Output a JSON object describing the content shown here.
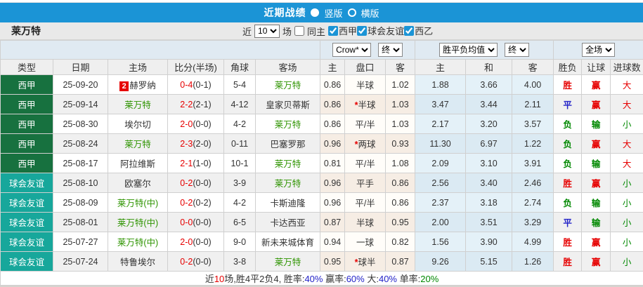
{
  "title": {
    "label": "近期战绩",
    "radio_vertical": "竖版",
    "radio_horizontal": "横版"
  },
  "team_bar": {
    "team": "莱万特",
    "near_label": "近",
    "count_value": "10",
    "games_label": "场",
    "same_home_label": "同主",
    "league_filters": [
      "西甲",
      "球会友谊",
      "西乙"
    ]
  },
  "filters": {
    "odds_source": "Crow*",
    "odds_time": "终",
    "mean_type": "胜平负均值",
    "mean_time": "终",
    "scope": "全场"
  },
  "table": {
    "headers": [
      "类型",
      "日期",
      "主场",
      "比分(半场)",
      "角球",
      "客场",
      "主",
      "盘口",
      "客",
      "主",
      "和",
      "客",
      "胜负",
      "让球",
      "进球数"
    ],
    "rows": [
      {
        "league": "西甲",
        "league_type": "liga",
        "date": "25-09-20",
        "home": "赫罗纳",
        "home_badge": "2",
        "home_team": false,
        "score": "0-4",
        "half": "(0-1)",
        "corners": "5-4",
        "away": "莱万特",
        "away_team": true,
        "o_home": "0.86",
        "handicap": "半球",
        "handicap_star": false,
        "o_away": "1.02",
        "m_win": "1.88",
        "m_draw": "3.66",
        "m_lose": "4.00",
        "result": "胜",
        "let_result": "赢",
        "goal_result": "大"
      },
      {
        "league": "西甲",
        "league_type": "liga",
        "date": "25-09-14",
        "home": "莱万特",
        "home_team": true,
        "score": "2-2",
        "half": "(2-1)",
        "corners": "4-12",
        "away": "皇家贝蒂斯",
        "away_team": false,
        "o_home": "0.86",
        "handicap": "半球",
        "handicap_star": true,
        "o_away": "1.03",
        "m_win": "3.47",
        "m_draw": "3.44",
        "m_lose": "2.11",
        "result": "平",
        "let_result": "赢",
        "goal_result": "大"
      },
      {
        "league": "西甲",
        "league_type": "liga",
        "date": "25-08-30",
        "home": "埃尔切",
        "home_team": false,
        "score": "2-0",
        "half": "(0-0)",
        "corners": "4-2",
        "away": "莱万特",
        "away_team": true,
        "o_home": "0.86",
        "handicap": "平/半",
        "handicap_star": false,
        "o_away": "1.03",
        "m_win": "2.17",
        "m_draw": "3.20",
        "m_lose": "3.57",
        "result": "负",
        "let_result": "输",
        "goal_result": "小"
      },
      {
        "league": "西甲",
        "league_type": "liga",
        "date": "25-08-24",
        "home": "莱万特",
        "home_team": true,
        "score": "2-3",
        "half": "(2-0)",
        "corners": "0-11",
        "away": "巴塞罗那",
        "away_team": false,
        "o_home": "0.96",
        "handicap": "两球",
        "handicap_star": true,
        "o_away": "0.93",
        "m_win": "11.30",
        "m_draw": "6.97",
        "m_lose": "1.22",
        "result": "负",
        "let_result": "赢",
        "goal_result": "大"
      },
      {
        "league": "西甲",
        "league_type": "liga",
        "date": "25-08-17",
        "home": "阿拉维斯",
        "home_team": false,
        "score": "2-1",
        "half": "(1-0)",
        "corners": "10-1",
        "away": "莱万特",
        "away_team": true,
        "o_home": "0.81",
        "handicap": "平/半",
        "handicap_star": false,
        "o_away": "1.08",
        "m_win": "2.09",
        "m_draw": "3.10",
        "m_lose": "3.91",
        "result": "负",
        "let_result": "输",
        "goal_result": "大"
      },
      {
        "league": "球会友谊",
        "league_type": "friendly",
        "date": "25-08-10",
        "home": "欧塞尔",
        "home_team": false,
        "score": "0-2",
        "half": "(0-0)",
        "corners": "3-9",
        "away": "莱万特",
        "away_team": true,
        "o_home": "0.96",
        "handicap": "平手",
        "handicap_star": false,
        "o_away": "0.86",
        "m_win": "2.56",
        "m_draw": "3.40",
        "m_lose": "2.46",
        "result": "胜",
        "let_result": "赢",
        "goal_result": "小"
      },
      {
        "league": "球会友谊",
        "league_type": "friendly",
        "date": "25-08-09",
        "home": "莱万特(中)",
        "home_team": true,
        "score": "0-2",
        "half": "(0-2)",
        "corners": "4-2",
        "away": "卡斯迪隆",
        "away_team": false,
        "o_home": "0.96",
        "handicap": "平/半",
        "handicap_star": false,
        "o_away": "0.86",
        "m_win": "2.37",
        "m_draw": "3.18",
        "m_lose": "2.74",
        "result": "负",
        "let_result": "输",
        "goal_result": "小"
      },
      {
        "league": "球会友谊",
        "league_type": "friendly",
        "date": "25-08-01",
        "home": "莱万特(中)",
        "home_team": true,
        "score": "0-0",
        "half": "(0-0)",
        "corners": "6-5",
        "away": "卡达西亚",
        "away_team": false,
        "o_home": "0.87",
        "handicap": "半球",
        "handicap_star": false,
        "o_away": "0.95",
        "m_win": "2.00",
        "m_draw": "3.51",
        "m_lose": "3.29",
        "result": "平",
        "let_result": "输",
        "goal_result": "小"
      },
      {
        "league": "球会友谊",
        "league_type": "friendly",
        "date": "25-07-27",
        "home": "莱万特(中)",
        "home_team": true,
        "score": "2-0",
        "half": "(0-0)",
        "corners": "9-0",
        "away": "新未来城体育",
        "away_team": false,
        "o_home": "0.94",
        "handicap": "一球",
        "handicap_star": false,
        "o_away": "0.82",
        "m_win": "1.56",
        "m_draw": "3.90",
        "m_lose": "4.99",
        "result": "胜",
        "let_result": "赢",
        "goal_result": "小"
      },
      {
        "league": "球会友谊",
        "league_type": "friendly",
        "date": "25-07-24",
        "home": "特鲁埃尔",
        "home_team": false,
        "score": "0-2",
        "half": "(0-0)",
        "corners": "3-8",
        "away": "莱万特",
        "away_team": true,
        "o_home": "0.95",
        "handicap": "球半",
        "handicap_star": true,
        "o_away": "0.87",
        "m_win": "9.26",
        "m_draw": "5.15",
        "m_lose": "1.26",
        "result": "胜",
        "let_result": "赢",
        "goal_result": "小"
      }
    ]
  },
  "footer": {
    "segments": [
      {
        "text": "近",
        "color": "#333333"
      },
      {
        "text": "10",
        "color": "#e60000"
      },
      {
        "text": "场,胜4平2负4, 胜率:",
        "color": "#333333"
      },
      {
        "text": "40%",
        "color": "#2323c8"
      },
      {
        "text": " 赢率:",
        "color": "#333333"
      },
      {
        "text": "60%",
        "color": "#2323c8"
      },
      {
        "text": " 大:",
        "color": "#333333"
      },
      {
        "text": "40%",
        "color": "#2323c8"
      },
      {
        "text": " 单率:",
        "color": "#333333"
      },
      {
        "text": "20%",
        "color": "#008800"
      }
    ]
  },
  "colors": {
    "win": "#e60000",
    "draw": "#2323c8",
    "lose": "#008800",
    "team": "#2e9400",
    "accent_blue": "#1b94d6",
    "league_liga_bg": "#17713f",
    "league_friendly_bg": "#17a79b"
  }
}
